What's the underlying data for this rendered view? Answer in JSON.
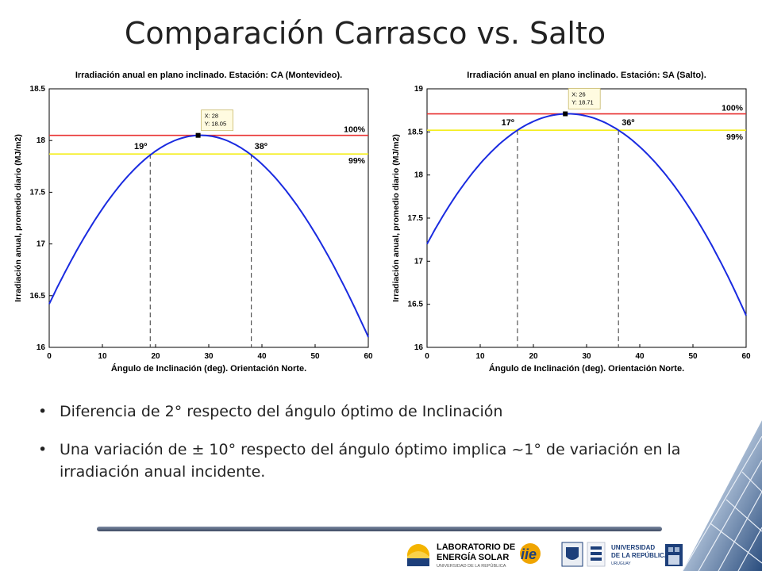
{
  "slide": {
    "title": "Comparación Carrasco vs. Salto",
    "bullets": [
      "Diferencia de 2° respecto del ángulo óptimo de Inclinación",
      "Una variación de ± 10° respecto del ángulo óptimo implica ~1° de variación en la irradiación anual incidente."
    ]
  },
  "logos": {
    "les_line1": "LABORATORIO DE",
    "les_line2": "ENERGÍA SOLAR",
    "les_line3": "UNIVERSIDAD DE LA REPÚBLICA",
    "iie": "iie",
    "udelar_line1": "UNIVERSIDAD",
    "udelar_line2": "DE LA REPÚBLICA",
    "udelar_line3": "URUGUAY"
  },
  "colors": {
    "curve": "#1a2be0",
    "line100": "#e83030",
    "line99": "#f4ee1c",
    "dashed": "#555555",
    "title": "#222222"
  },
  "chart_data": [
    {
      "type": "line",
      "title": "Irradiación anual en plano inclinado. Estación: CA (Montevideo).",
      "xlabel": "Ángulo de Inclinación (deg). Orientación Norte.",
      "ylabel": "Irradiación anual, promedio diario (MJ/m2)",
      "xlim": [
        0,
        60
      ],
      "ylim": [
        16,
        18.5
      ],
      "xticks": [
        0,
        10,
        20,
        30,
        40,
        50,
        60
      ],
      "yticks": [
        16,
        16.5,
        17,
        17.5,
        18,
        18.5
      ],
      "optimum": {
        "x": 28,
        "y": 18.05
      },
      "datatip": [
        "X: 28",
        "Y: 18.05"
      ],
      "curve_samples": [
        [
          0,
          16.42
        ],
        [
          19,
          17.86
        ],
        [
          28,
          18.05
        ],
        [
          38,
          17.86
        ],
        [
          60,
          16.1
        ]
      ],
      "hlines": [
        {
          "label": "100%",
          "y": 18.05
        },
        {
          "label": "99%",
          "y": 17.87
        }
      ],
      "vlines": [
        {
          "label": "19º",
          "x": 19
        },
        {
          "label": "38º",
          "x": 38
        }
      ]
    },
    {
      "type": "line",
      "title": "Irradiación anual en plano inclinado. Estación: SA (Salto).",
      "xlabel": "Ángulo de Inclinación (deg). Orientación Norte.",
      "ylabel": "Irradiación anual, promedio diario (MJ/m2)",
      "xlim": [
        0,
        60
      ],
      "ylim": [
        16,
        19
      ],
      "xticks": [
        0,
        10,
        20,
        30,
        40,
        50,
        60
      ],
      "yticks": [
        16,
        16.5,
        17,
        17.5,
        18,
        18.5,
        19
      ],
      "optimum": {
        "x": 26,
        "y": 18.71
      },
      "datatip": [
        "X: 26",
        "Y: 18.71"
      ],
      "curve_samples": [
        [
          0,
          17.2
        ],
        [
          17,
          18.52
        ],
        [
          26,
          18.71
        ],
        [
          36,
          18.52
        ],
        [
          60,
          16.37
        ]
      ],
      "hlines": [
        {
          "label": "100%",
          "y": 18.71
        },
        {
          "label": "99%",
          "y": 18.52
        }
      ],
      "vlines": [
        {
          "label": "17º",
          "x": 17
        },
        {
          "label": "36º",
          "x": 36
        }
      ]
    }
  ]
}
